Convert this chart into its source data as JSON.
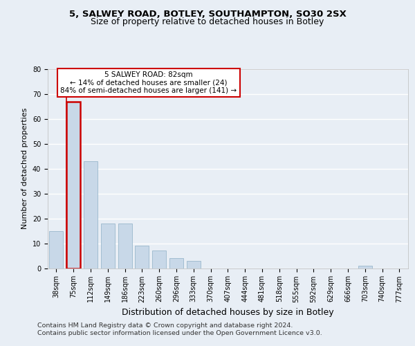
{
  "title1": "5, SALWEY ROAD, BOTLEY, SOUTHAMPTON, SO30 2SX",
  "title2": "Size of property relative to detached houses in Botley",
  "xlabel": "Distribution of detached houses by size in Botley",
  "ylabel": "Number of detached properties",
  "categories": [
    "38sqm",
    "75sqm",
    "112sqm",
    "149sqm",
    "186sqm",
    "223sqm",
    "260sqm",
    "296sqm",
    "333sqm",
    "370sqm",
    "407sqm",
    "444sqm",
    "481sqm",
    "518sqm",
    "555sqm",
    "592sqm",
    "629sqm",
    "666sqm",
    "703sqm",
    "740sqm",
    "777sqm"
  ],
  "values": [
    15,
    67,
    43,
    18,
    18,
    9,
    7,
    4,
    3,
    0,
    0,
    0,
    0,
    0,
    0,
    0,
    0,
    0,
    1,
    0,
    0
  ],
  "bar_color": "#c8d8e8",
  "bar_edge_color": "#9ab8cc",
  "highlight_bar_index": 1,
  "highlight_edge_color": "#cc0000",
  "marker_color": "#cc0000",
  "ylim": [
    0,
    80
  ],
  "yticks": [
    0,
    10,
    20,
    30,
    40,
    50,
    60,
    70,
    80
  ],
  "annotation_line1": "5 SALWEY ROAD: 82sqm",
  "annotation_line2": "← 14% of detached houses are smaller (24)",
  "annotation_line3": "84% of semi-detached houses are larger (141) →",
  "annotation_box_facecolor": "#ffffff",
  "annotation_box_edgecolor": "#cc0000",
  "footer_line1": "Contains HM Land Registry data © Crown copyright and database right 2024.",
  "footer_line2": "Contains public sector information licensed under the Open Government Licence v3.0.",
  "bg_color": "#e8eef5",
  "grid_color": "#ffffff",
  "title_fontsize": 9.5,
  "subtitle_fontsize": 9,
  "axis_label_fontsize": 9,
  "tick_fontsize": 7,
  "footer_fontsize": 6.8,
  "ylabel_fontsize": 8
}
